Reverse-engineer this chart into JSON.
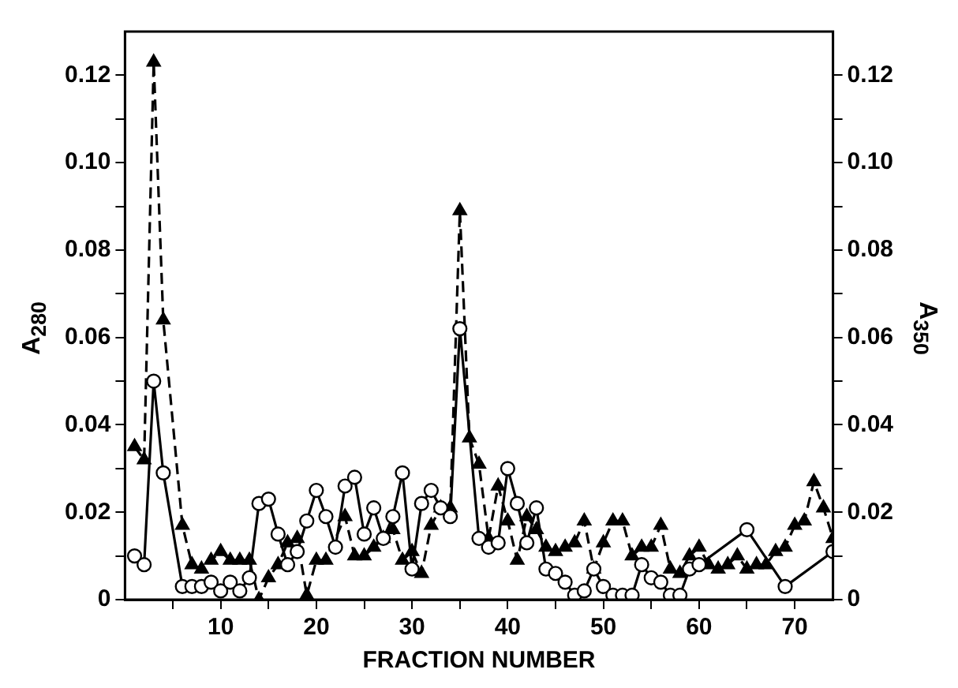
{
  "chart_data": {
    "type": "line",
    "xlabel": "FRACTION NUMBER",
    "ylabel": "A$_{280}$",
    "y2label": "A$_{350}$",
    "xlim": [
      0,
      74
    ],
    "xticks": [
      {
        "value": 5,
        "label": null
      },
      10,
      {
        "value": 15,
        "label": null
      },
      20,
      {
        "value": 25,
        "label": null
      },
      30,
      {
        "value": 35,
        "label": null
      },
      40,
      {
        "value": 45,
        "label": null
      },
      50,
      {
        "value": 55,
        "label": null
      },
      60,
      {
        "value": 65,
        "label": null
      },
      70
    ],
    "ylim": [
      0,
      0.13
    ],
    "yticks": [
      0,
      {
        "value": 0.01,
        "label": null
      },
      {
        "value": 0.02,
        "label": "0.02"
      },
      {
        "value": 0.03,
        "label": null
      },
      {
        "value": 0.04,
        "label": "0.04"
      },
      {
        "value": 0.05,
        "label": null
      },
      {
        "value": 0.06,
        "label": "0.06"
      },
      {
        "value": 0.07,
        "label": null
      },
      {
        "value": 0.08,
        "label": "0.08"
      },
      {
        "value": 0.09,
        "label": null
      },
      {
        "value": 0.1,
        "label": "0.10"
      },
      {
        "value": 0.11,
        "label": null
      },
      {
        "value": 0.12,
        "label": "0.12"
      }
    ],
    "y2lim": [
      0,
      0.13
    ],
    "y2ticks": [
      0,
      {
        "value": 0.01,
        "label": null
      },
      {
        "value": 0.02,
        "label": "0.02"
      },
      {
        "value": 0.03,
        "label": null
      },
      {
        "value": 0.04,
        "label": "0.04"
      },
      {
        "value": 0.05,
        "label": null
      },
      {
        "value": 0.06,
        "label": "0.06"
      },
      {
        "value": 0.07,
        "label": null
      },
      {
        "value": 0.08,
        "label": "0.08"
      },
      {
        "value": 0.09,
        "label": null
      },
      {
        "value": 0.1,
        "label": "0.10"
      },
      {
        "value": 0.11,
        "label": null
      },
      {
        "value": 0.12,
        "label": "0.12"
      }
    ],
    "grid": false,
    "legend": false,
    "series": [
      {
        "color": "#000000",
        "marker": "circle",
        "line_style": "solid",
        "x": [
          1,
          2,
          3,
          4,
          6,
          7,
          8,
          9,
          10,
          11,
          12,
          13,
          14,
          15,
          16,
          17,
          18,
          19,
          20,
          21,
          22,
          23,
          24,
          25,
          26,
          27,
          28,
          29,
          30,
          31,
          32,
          33,
          34,
          35,
          37,
          38,
          39,
          40,
          41,
          42,
          43,
          44,
          45,
          46,
          47,
          48,
          49,
          50,
          51,
          52,
          53,
          54,
          55,
          56,
          57,
          58,
          59,
          60,
          65,
          69,
          74
        ],
        "values": [
          0.01,
          0.008,
          0.05,
          0.029,
          0.003,
          0.003,
          0.003,
          0.004,
          0.002,
          0.004,
          0.002,
          0.005,
          0.022,
          0.023,
          0.015,
          0.008,
          0.011,
          0.018,
          0.025,
          0.019,
          0.012,
          0.026,
          0.028,
          0.015,
          0.021,
          0.014,
          0.019,
          0.029,
          0.007,
          0.022,
          0.025,
          0.021,
          0.019,
          0.062,
          0.014,
          0.012,
          0.013,
          0.03,
          0.022,
          0.013,
          0.021,
          0.007,
          0.006,
          0.004,
          0.001,
          0.002,
          0.007,
          0.003,
          0.001,
          0.001,
          0.001,
          0.008,
          0.005,
          0.004,
          0.001,
          0.001,
          0.007,
          0.008,
          0.016,
          0.003,
          0.011
        ]
      },
      {
        "color": "#000000",
        "marker": "triangle",
        "line_style": "dashed",
        "axis": "y2",
        "x": [
          1,
          2,
          3,
          4,
          6,
          7,
          8,
          9,
          10,
          11,
          12,
          13,
          14,
          15,
          16,
          17,
          18,
          19,
          20,
          21,
          23,
          24,
          25,
          26,
          27,
          28,
          29,
          30,
          31,
          32,
          33,
          34,
          35,
          36,
          37,
          38,
          39,
          40,
          41,
          42,
          43,
          44,
          45,
          46,
          47,
          48,
          49,
          50,
          51,
          52,
          53,
          54,
          55,
          56,
          57,
          58,
          59,
          60,
          61,
          62,
          63,
          64,
          65,
          66,
          67,
          68,
          69,
          70,
          71,
          72,
          73,
          74
        ],
        "values": [
          0.035,
          0.032,
          0.123,
          0.064,
          0.017,
          0.008,
          0.007,
          0.009,
          0.011,
          0.009,
          0.009,
          0.009,
          0.0,
          0.005,
          0.008,
          0.013,
          0.014,
          0.001,
          0.009,
          0.009,
          0.019,
          0.01,
          0.01,
          0.012,
          0.014,
          0.016,
          0.009,
          0.011,
          0.006,
          0.017,
          0.021,
          0.021,
          0.089,
          0.037,
          0.031,
          0.014,
          0.026,
          0.018,
          0.009,
          0.019,
          0.016,
          0.012,
          0.011,
          0.012,
          0.013,
          0.018,
          0.007,
          0.013,
          0.018,
          0.018,
          0.01,
          0.012,
          0.012,
          0.017,
          0.007,
          0.006,
          0.01,
          0.012,
          0.008,
          0.007,
          0.008,
          0.01,
          0.007,
          0.008,
          0.008,
          0.011,
          0.012,
          0.017,
          0.018,
          0.027,
          0.021,
          0.014
        ]
      }
    ]
  }
}
